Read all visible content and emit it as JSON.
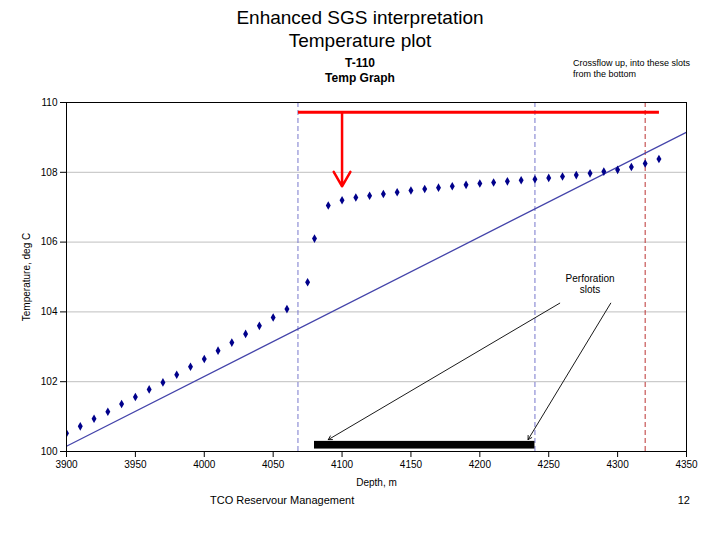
{
  "chart_data": {
    "type": "scatter",
    "slide_title": [
      "Enhanced SGS interpretation",
      "Temperature plot"
    ],
    "title": "T-110",
    "subtitle": "Temp Graph",
    "xlabel": "Depth, m",
    "ylabel": "Temperature, deg C",
    "xlim": [
      3900,
      4350
    ],
    "ylim": [
      100,
      110
    ],
    "xticks": [
      3900,
      3950,
      4000,
      4050,
      4100,
      4150,
      4200,
      4250,
      4300,
      4350
    ],
    "yticks": [
      100,
      102,
      104,
      106,
      108,
      110
    ],
    "grid": true,
    "series": [
      {
        "type": "line",
        "color": "#4444AA",
        "x": [
          3900,
          4350
        ],
        "values": [
          100.15,
          109.15
        ]
      },
      {
        "type": "scatter",
        "color": "#00008B",
        "marker": "diamond",
        "x": [
          3900,
          3910,
          3920,
          3930,
          3940,
          3950,
          3960,
          3970,
          3980,
          3990,
          4000,
          4010,
          4020,
          4030,
          4040,
          4050,
          4060,
          4075,
          4080,
          4090,
          4100,
          4110,
          4120,
          4130,
          4140,
          4150,
          4160,
          4170,
          4180,
          4190,
          4200,
          4210,
          4220,
          4230,
          4240,
          4250,
          4260,
          4270,
          4280,
          4290,
          4300,
          4310,
          4320,
          4330
        ],
        "values": [
          100.52,
          100.72,
          100.94,
          101.14,
          101.36,
          101.56,
          101.78,
          101.98,
          102.2,
          102.43,
          102.65,
          102.89,
          103.12,
          103.37,
          103.6,
          103.84,
          104.08,
          104.85,
          106.1,
          107.05,
          107.2,
          107.28,
          107.33,
          107.38,
          107.43,
          107.48,
          107.52,
          107.56,
          107.6,
          107.64,
          107.68,
          107.71,
          107.74,
          107.77,
          107.8,
          107.84,
          107.88,
          107.92,
          107.97,
          108.02,
          108.07,
          108.15,
          108.25,
          108.38
        ]
      }
    ],
    "vlines": [
      {
        "x": 4068,
        "color": "#7777CC",
        "line_style": "dashed"
      },
      {
        "x": 4240,
        "color": "#7777CC",
        "line_style": "dashed"
      },
      {
        "x": 4320,
        "color": "#BB3333",
        "line_style": "dashed"
      }
    ],
    "perforation_interval": {
      "x1": 4080,
      "x2": 4240,
      "y": 100.18,
      "height": 0.22,
      "color": "black"
    },
    "red_line": {
      "x1": 4068,
      "x2": 4330,
      "y": 109.72,
      "color": "red"
    },
    "red_arrow": {
      "x": 4100,
      "y1": 109.72,
      "y2": 107.6,
      "color": "red"
    },
    "annotations": [
      {
        "text": "Crossflow up, into these slots\nfrom the bottom"
      },
      {
        "text": "Perforation\nslots",
        "x": 4280,
        "y": 104.8
      }
    ],
    "footer": "TCO Reservour Management",
    "page_number": "12"
  }
}
